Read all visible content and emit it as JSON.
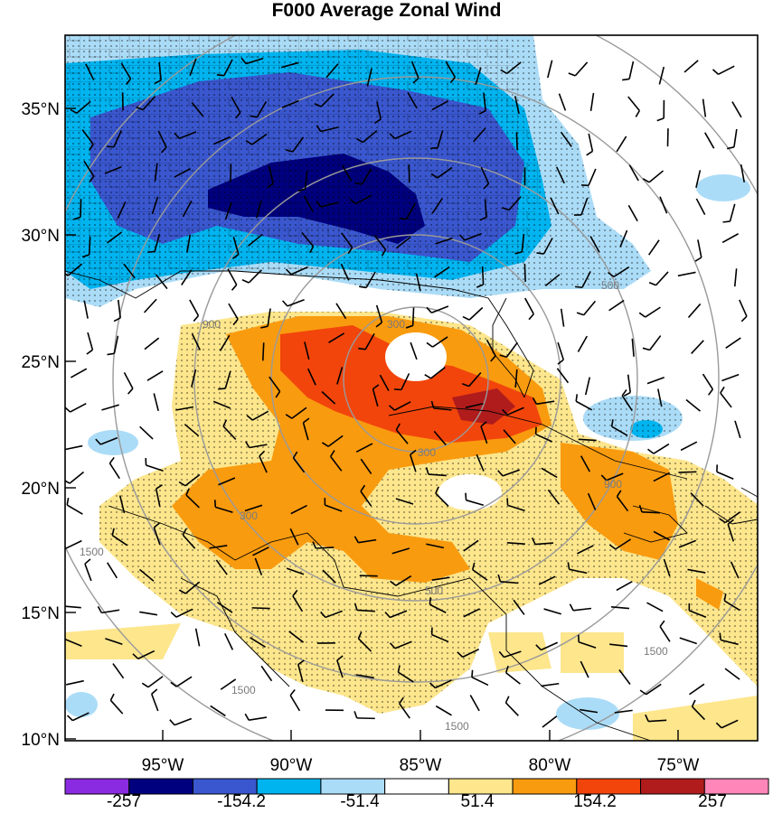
{
  "title": "F000 Average Zonal Wind",
  "lat_labels": [
    "35°N",
    "30°N",
    "25°N",
    "20°N",
    "15°N",
    "10°N"
  ],
  "lon_labels": [
    "95°W",
    "90°W",
    "85°W",
    "80°W",
    "75°W"
  ],
  "colorbar": {
    "colors": [
      "#8a2be2",
      "#00007f",
      "#3a57cf",
      "#00b4f0",
      "#abdcf7",
      "#ffffff",
      "#fde68c",
      "#f99b0f",
      "#f2450c",
      "#b01c1c",
      "#ff86b8"
    ],
    "labels": [
      "-257",
      "-154.2",
      "-51.4",
      "51.4",
      "154.2",
      "257"
    ]
  },
  "ring_labels": [
    "300",
    "900",
    "300",
    "500",
    "300",
    "900",
    "500",
    "1500",
    "1500",
    "1500",
    "1500"
  ]
}
